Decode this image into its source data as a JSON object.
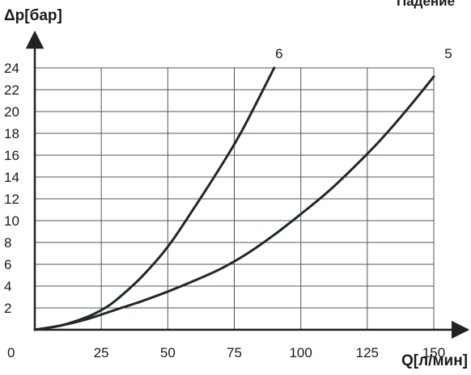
{
  "chart_data": {
    "type": "line",
    "title": "Падение",
    "xlabel": "Q[л/мин]",
    "ylabel": "Δp[бар]",
    "xlim": [
      0,
      150
    ],
    "ylim": [
      0,
      24
    ],
    "x_ticks": [
      "0",
      "25",
      "50",
      "75",
      "100",
      "125",
      "150"
    ],
    "y_ticks": [
      "2",
      "4",
      "6",
      "8",
      "10",
      "12",
      "14",
      "16",
      "18",
      "20",
      "22",
      "24"
    ],
    "grid": true,
    "series": [
      {
        "name": "6",
        "x": [
          0,
          10,
          20,
          25,
          30,
          40,
          50,
          60,
          70,
          75,
          80,
          90
        ],
        "y": [
          0,
          0.4,
          1.2,
          1.8,
          2.6,
          4.8,
          7.6,
          11.2,
          15.0,
          17.0,
          19.2,
          24.0
        ]
      },
      {
        "name": "5",
        "x": [
          0,
          10,
          20,
          30,
          40,
          50,
          60,
          70,
          80,
          90,
          100,
          110,
          120,
          130,
          140,
          150
        ],
        "y": [
          0,
          0.4,
          1.0,
          1.8,
          2.6,
          3.5,
          4.5,
          5.6,
          7.0,
          8.7,
          10.6,
          12.6,
          14.9,
          17.4,
          20.2,
          23.2
        ]
      }
    ]
  }
}
